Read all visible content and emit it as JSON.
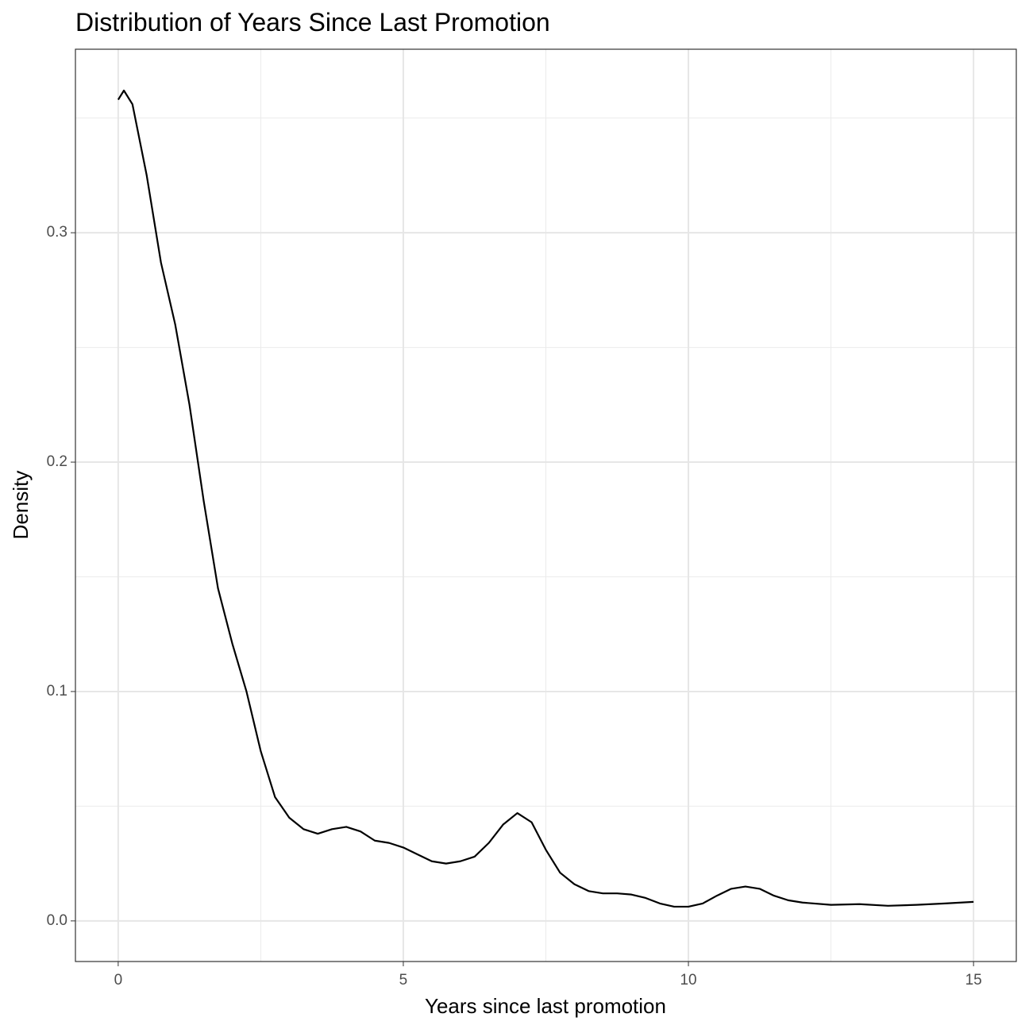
{
  "chart_data": {
    "type": "line",
    "title": "Distribution of Years Since Last Promotion",
    "x_label": "Years since last promotion",
    "y_label": "Density",
    "x": [
      0,
      0.1,
      0.25,
      0.5,
      0.75,
      1.0,
      1.25,
      1.5,
      1.75,
      2.0,
      2.25,
      2.5,
      2.75,
      3.0,
      3.25,
      3.5,
      3.75,
      4.0,
      4.25,
      4.5,
      4.75,
      5.0,
      5.25,
      5.5,
      5.75,
      6.0,
      6.25,
      6.5,
      6.75,
      7.0,
      7.25,
      7.5,
      7.75,
      8.0,
      8.25,
      8.5,
      8.75,
      9.0,
      9.25,
      9.5,
      9.75,
      10.0,
      10.25,
      10.5,
      10.75,
      11.0,
      11.25,
      11.5,
      11.75,
      12.0,
      12.5,
      13.0,
      13.5,
      14.0,
      14.5,
      15.0
    ],
    "series": [
      {
        "name": "density",
        "color": "#000000",
        "values": [
          0.358,
          0.362,
          0.356,
          0.325,
          0.287,
          0.26,
          0.225,
          0.183,
          0.145,
          0.121,
          0.1,
          0.074,
          0.054,
          0.045,
          0.04,
          0.038,
          0.04,
          0.041,
          0.039,
          0.035,
          0.034,
          0.032,
          0.029,
          0.026,
          0.025,
          0.026,
          0.028,
          0.034,
          0.042,
          0.047,
          0.043,
          0.031,
          0.021,
          0.016,
          0.013,
          0.012,
          0.012,
          0.0115,
          0.01,
          0.0076,
          0.0062,
          0.0062,
          0.0076,
          0.011,
          0.014,
          0.015,
          0.014,
          0.011,
          0.009,
          0.008,
          0.007,
          0.0073,
          0.0066,
          0.007,
          0.0076,
          0.0083
        ]
      }
    ],
    "xlim": [
      -0.75,
      15.75
    ],
    "ylim": [
      -0.0177,
      0.38
    ],
    "xticks": [
      0,
      5,
      10,
      15
    ],
    "yticks": [
      {
        "value": 0,
        "label": "0.0"
      },
      0.1,
      0.2,
      0.3
    ],
    "x_minor_ticks": [
      2.5,
      7.5,
      12.5
    ],
    "y_minor_ticks": [
      0.05,
      0.15,
      0.25,
      0.35
    ],
    "grid": true
  }
}
